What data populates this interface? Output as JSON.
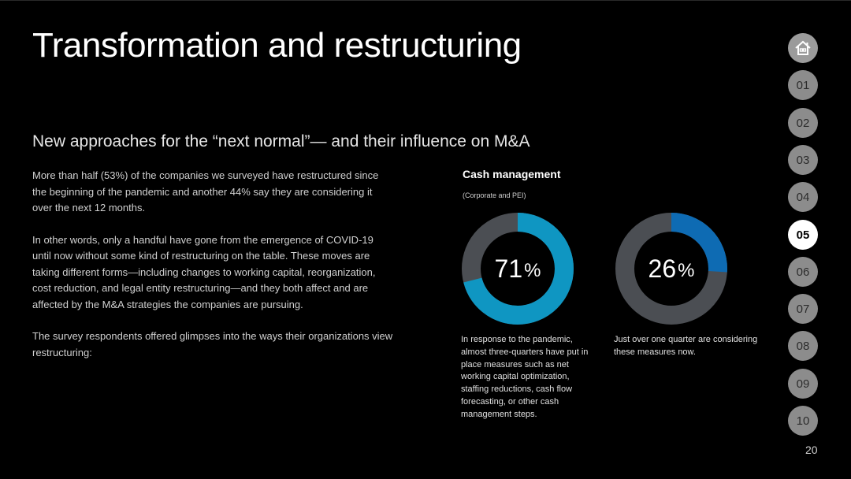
{
  "slide": {
    "title": "Transformation and restructuring",
    "subtitle": "New approaches for the “next normal”— and their influence on M&A",
    "paragraphs": [
      "More than half (53%) of the companies we surveyed have restructured since the beginning of the pandemic and another 44% say they are considering it over the next 12 months.",
      "In other words, only a handful have gone from the emergence of COVID-19 until now without some kind of restructuring on the table. These moves are taking different forms—including changes to working capital, reorganization, cost reduction, and legal entity restructuring—and they both affect and are affected by the M&A strategies the companies are pursuing.",
      "The survey respondents offered glimpses into the ways their organizations view restructuring:"
    ],
    "page_number": "20"
  },
  "cash": {
    "title": "Cash management",
    "subtitle": "(Corporate and PEI)",
    "donuts": [
      {
        "value": 71,
        "number": "71",
        "unit": "%",
        "color": "#0f96c2",
        "track_color": "#4b4e53",
        "caption": "In response to the pandemic, almost three-quarters have put in place measures such as net working capital optimization, staffing reductions, cash flow forecasting, or other cash management steps."
      },
      {
        "value": 26,
        "number": "26",
        "unit": "%",
        "color": "#0e6bb3",
        "track_color": "#4b4e53",
        "caption": "Just over one quarter are considering these measures now."
      }
    ]
  },
  "nav": {
    "home_icon": "home-icon",
    "items": [
      "01",
      "02",
      "03",
      "04",
      "05",
      "06",
      "07",
      "08",
      "09",
      "10"
    ],
    "active": "05"
  }
}
